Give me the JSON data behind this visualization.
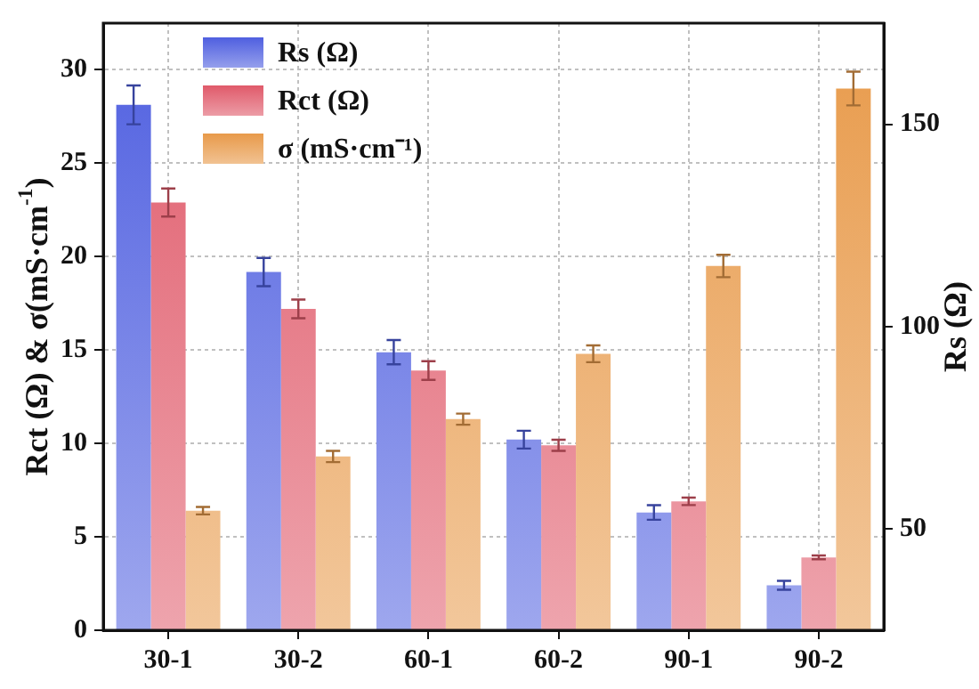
{
  "chart_data": {
    "type": "bar",
    "categories": [
      "30-1",
      "30-2",
      "60-1",
      "60-2",
      "90-1",
      "90-2"
    ],
    "series": [
      {
        "name": "Rs (Ω)",
        "color": "#4f5fe0",
        "axis": "y2",
        "values": [
          154.8,
          113.5,
          93.7,
          72.1,
          54.1,
          36.1
        ],
        "errors": [
          4.8,
          3.5,
          3,
          2.2,
          1.8,
          1.1
        ]
      },
      {
        "name": "Rct (Ω)",
        "color": "#e05a6a",
        "values": [
          22.9,
          17.2,
          13.9,
          9.9,
          6.9,
          3.9
        ],
        "errors": [
          0.75,
          0.5,
          0.5,
          0.3,
          0.2,
          0.1
        ]
      },
      {
        "name": "σ (mS·cm⁻¹)",
        "color": "#e89a4a",
        "values": [
          6.4,
          9.3,
          11.3,
          14.8,
          19.5,
          29.0
        ],
        "errors": [
          0.2,
          0.3,
          0.3,
          0.45,
          0.6,
          0.9
        ]
      }
    ],
    "ylabel": "Rct (Ω) & σ(mS·cm$^{-1}$)",
    "y2label": "Rs (Ω)",
    "ylim": [
      0,
      32.5
    ],
    "yticks": [
      0,
      5,
      10,
      15,
      20,
      25,
      30
    ],
    "y2lim": [
      25,
      175
    ],
    "y2ticks": [
      50,
      100,
      150
    ],
    "grid": true,
    "legend": "top left"
  }
}
